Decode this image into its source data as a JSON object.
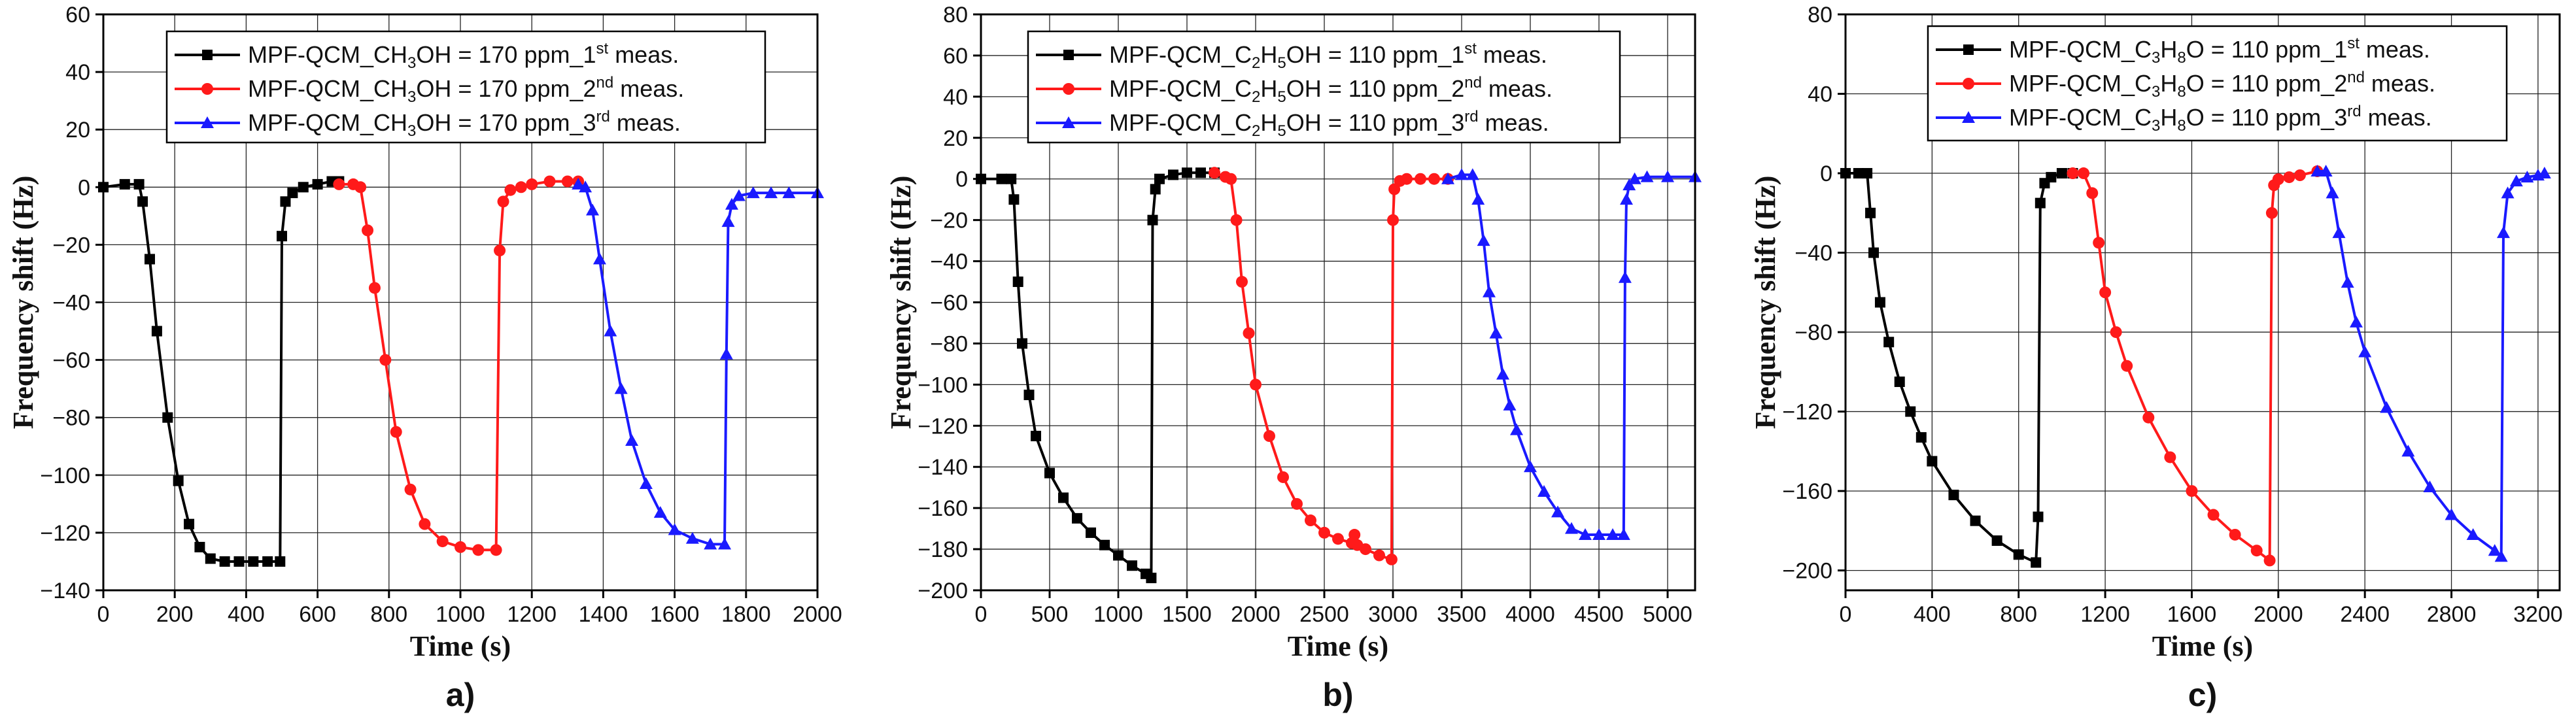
{
  "figure_title": "",
  "chart_data": [
    {
      "type": "line",
      "panel_label": "a)",
      "xlabel": "Time (s)",
      "ylabel": "Frequency shift (Hz)",
      "xlim": [
        0,
        2000
      ],
      "ylim": [
        -140,
        60
      ],
      "xticks": [
        0,
        200,
        400,
        600,
        800,
        1000,
        1200,
        1400,
        1600,
        1800,
        2000
      ],
      "yticks": [
        -140,
        -120,
        -100,
        -80,
        -60,
        -40,
        -20,
        0,
        20,
        40,
        60
      ],
      "grid": true,
      "legend_position": "top-right",
      "series": [
        {
          "name": "MPF-QCM_CH3OH = 170 ppm_1st meas.",
          "legend": {
            "pre": "MPF-QCM_CH",
            "sub1": "3",
            "mid": "OH = 170 ppm_1",
            "sup": "st",
            "post": " meas."
          },
          "color": "#000000",
          "marker": "square",
          "x": [
            0,
            60,
            100,
            110,
            130,
            150,
            180,
            210,
            240,
            270,
            300,
            340,
            380,
            420,
            460,
            495,
            500,
            510,
            530,
            560,
            600,
            640,
            660
          ],
          "y": [
            0,
            1,
            1,
            -5,
            -25,
            -50,
            -80,
            -102,
            -117,
            -125,
            -129,
            -130,
            -130,
            -130,
            -130,
            -130,
            -17,
            -5,
            -2,
            0,
            1,
            2,
            2
          ]
        },
        {
          "name": "MPF-QCM_CH3OH = 170 ppm_2nd meas.",
          "legend": {
            "pre": "MPF-QCM_CH",
            "sub1": "3",
            "mid": "OH = 170 ppm_2",
            "sup": "nd",
            "post": " meas."
          },
          "color": "#ff1a1a",
          "marker": "circle",
          "x": [
            660,
            700,
            720,
            740,
            760,
            790,
            820,
            860,
            900,
            950,
            1000,
            1050,
            1100,
            1110,
            1120,
            1140,
            1170,
            1200,
            1250,
            1300,
            1330
          ],
          "y": [
            1,
            1,
            0,
            -15,
            -35,
            -60,
            -85,
            -105,
            -117,
            -123,
            -125,
            -126,
            -126,
            -22,
            -5,
            -1,
            0,
            1,
            2,
            2,
            2
          ]
        },
        {
          "name": "MPF-QCM_CH3OH = 170 ppm_3rd meas.",
          "legend": {
            "pre": "MPF-QCM_CH",
            "sub1": "3",
            "mid": "OH = 170 ppm_3",
            "sup": "rd",
            "post": " meas."
          },
          "color": "#1a1aff",
          "marker": "triangle",
          "x": [
            1330,
            1350,
            1370,
            1390,
            1420,
            1450,
            1480,
            1520,
            1560,
            1600,
            1650,
            1700,
            1740,
            1745,
            1750,
            1760,
            1780,
            1820,
            1870,
            1920,
            2000
          ],
          "y": [
            1,
            0,
            -8,
            -25,
            -50,
            -70,
            -88,
            -103,
            -113,
            -119,
            -122,
            -124,
            -124,
            -58,
            -12,
            -6,
            -3,
            -2,
            -2,
            -2,
            -2
          ]
        }
      ]
    },
    {
      "type": "line",
      "panel_label": "b)",
      "xlabel": "Time (s)",
      "ylabel": "Frequency shift (Hz)",
      "xlim": [
        0,
        5200
      ],
      "ylim": [
        -200,
        80
      ],
      "xticks": [
        0,
        500,
        1000,
        1500,
        2000,
        2500,
        3000,
        3500,
        4000,
        4500,
        5000
      ],
      "yticks": [
        -200,
        -180,
        -160,
        -140,
        -120,
        -100,
        -80,
        -60,
        -40,
        -20,
        0,
        20,
        40,
        60,
        80
      ],
      "grid": true,
      "legend_position": "top-right",
      "series": [
        {
          "name": "MPF-QCM_C2H5OH = 110 ppm_1st meas.",
          "legend": {
            "pre": "MPF-QCM_C",
            "sub1": "2",
            "mid": "H",
            "sub2": "5",
            "mid2": "OH = 110 ppm_1",
            "sup": "st",
            "post": " meas."
          },
          "color": "#000000",
          "marker": "square",
          "x": [
            0,
            150,
            220,
            240,
            270,
            300,
            350,
            400,
            500,
            600,
            700,
            800,
            900,
            1000,
            1100,
            1200,
            1240,
            1250,
            1270,
            1300,
            1400,
            1500,
            1600,
            1700
          ],
          "y": [
            0,
            0,
            0,
            -10,
            -50,
            -80,
            -105,
            -125,
            -143,
            -155,
            -165,
            -172,
            -178,
            -183,
            -188,
            -192,
            -194,
            -20,
            -5,
            0,
            2,
            3,
            3,
            3
          ]
        },
        {
          "name": "MPF-QCM_C2H5OH = 110 ppm_2nd meas.",
          "legend": {
            "pre": "MPF-QCM_C",
            "sub1": "2",
            "mid": "H",
            "sub2": "5",
            "mid2": "OH = 110 ppm_2",
            "sup": "nd",
            "post": " meas."
          },
          "color": "#ff1a1a",
          "marker": "circle",
          "x": [
            1700,
            1780,
            1820,
            1860,
            1900,
            1950,
            2000,
            2100,
            2200,
            2300,
            2400,
            2500,
            2600,
            2700,
            2720,
            2740,
            2800,
            2900,
            2990,
            3000,
            3010,
            3050,
            3100,
            3200,
            3300,
            3400
          ],
          "y": [
            3,
            1,
            0,
            -20,
            -50,
            -75,
            -100,
            -125,
            -145,
            -158,
            -166,
            -172,
            -175,
            -177,
            -173,
            -178,
            -180,
            -183,
            -185,
            -20,
            -5,
            -1,
            0,
            0,
            0,
            0
          ]
        },
        {
          "name": "MPF-QCM_C2H5OH = 110 ppm_3rd meas.",
          "legend": {
            "pre": "MPF-QCM_C",
            "sub1": "2",
            "mid": "H",
            "sub2": "5",
            "mid2": "OH = 110 ppm_3",
            "sup": "rd",
            "post": " meas."
          },
          "color": "#1a1aff",
          "marker": "triangle",
          "x": [
            3400,
            3500,
            3580,
            3620,
            3660,
            3700,
            3750,
            3800,
            3850,
            3900,
            4000,
            4100,
            4200,
            4300,
            4400,
            4500,
            4600,
            4680,
            4690,
            4700,
            4720,
            4760,
            4850,
            5000,
            5200
          ],
          "y": [
            0,
            2,
            2,
            -10,
            -30,
            -55,
            -75,
            -95,
            -110,
            -122,
            -140,
            -152,
            -162,
            -170,
            -173,
            -173,
            -173,
            -173,
            -48,
            -10,
            -3,
            0,
            1,
            1,
            1
          ]
        }
      ]
    },
    {
      "type": "line",
      "panel_label": "c)",
      "xlabel": "Time (s)",
      "ylabel": "Frequency shift (Hz)",
      "xlim": [
        0,
        3300
      ],
      "ylim": [
        -210,
        80
      ],
      "xticks": [
        0,
        400,
        800,
        1200,
        1600,
        2000,
        2400,
        2800,
        3200
      ],
      "yticks": [
        -200,
        -160,
        -120,
        -80,
        -40,
        0,
        40,
        80
      ],
      "grid": true,
      "legend_position": "top-right",
      "series": [
        {
          "name": "MPF-QCM_C3H8O = 110 ppm_1st meas.",
          "legend": {
            "pre": "MPF-QCM_C",
            "sub1": "3",
            "mid": "H",
            "sub2": "8",
            "mid2": "O = 110 ppm_1",
            "sup": "st",
            "post": " meas."
          },
          "color": "#000000",
          "marker": "square",
          "x": [
            0,
            60,
            100,
            115,
            130,
            160,
            200,
            250,
            300,
            350,
            400,
            500,
            600,
            700,
            800,
            880,
            890,
            900,
            920,
            950,
            1000,
            1050
          ],
          "y": [
            0,
            0,
            0,
            -20,
            -40,
            -65,
            -85,
            -105,
            -120,
            -133,
            -145,
            -162,
            -175,
            -185,
            -192,
            -196,
            -173,
            -15,
            -5,
            -2,
            0,
            0
          ]
        },
        {
          "name": "MPF-QCM_C3H8O = 110 ppm_2nd meas.",
          "legend": {
            "pre": "MPF-QCM_C",
            "sub1": "3",
            "mid": "H",
            "sub2": "8",
            "mid2": "O = 110 ppm_2",
            "sup": "nd",
            "post": " meas."
          },
          "color": "#ff1a1a",
          "marker": "circle",
          "x": [
            1050,
            1100,
            1140,
            1170,
            1200,
            1250,
            1300,
            1400,
            1500,
            1600,
            1700,
            1800,
            1900,
            1960,
            1970,
            1980,
            2000,
            2050,
            2100,
            2180
          ],
          "y": [
            0,
            0,
            -10,
            -35,
            -60,
            -80,
            -97,
            -123,
            -143,
            -160,
            -172,
            -182,
            -190,
            -195,
            -20,
            -6,
            -3,
            -2,
            -1,
            1
          ]
        },
        {
          "name": "MPF-QCM_C3H8O = 110 ppm_3rd meas.",
          "legend": {
            "pre": "MPF-QCM_C",
            "sub1": "3",
            "mid": "H",
            "sub2": "8",
            "mid2": "O = 110 ppm_3",
            "sup": "rd",
            "post": " meas."
          },
          "color": "#1a1aff",
          "marker": "triangle",
          "x": [
            2180,
            2220,
            2250,
            2280,
            2320,
            2360,
            2400,
            2500,
            2600,
            2700,
            2800,
            2900,
            3000,
            3030,
            3040,
            3060,
            3100,
            3150,
            3200,
            3230
          ],
          "y": [
            1,
            1,
            -10,
            -30,
            -55,
            -75,
            -90,
            -118,
            -140,
            -158,
            -172,
            -182,
            -190,
            -193,
            -30,
            -10,
            -4,
            -2,
            -1,
            0
          ]
        }
      ]
    }
  ]
}
